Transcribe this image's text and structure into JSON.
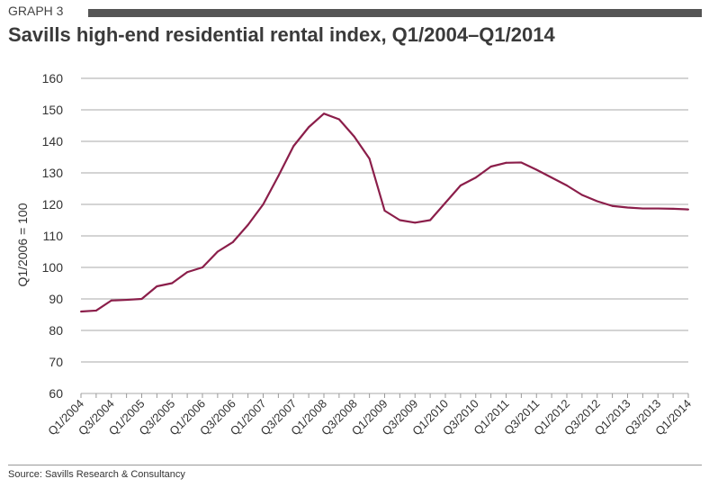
{
  "graph_label": "GRAPH 3",
  "source": "Source: Savills Research & Consultancy",
  "chart_data": {
    "type": "line",
    "title": "Savills high-end residential rental index, Q1/2004–Q1/2014",
    "xlabel": "",
    "ylabel": "Q1/2006 = 100",
    "ylim": [
      60,
      160
    ],
    "yticks": [
      60,
      70,
      80,
      90,
      100,
      110,
      120,
      130,
      140,
      150,
      160
    ],
    "xticklabels": [
      "Q1/2004",
      "Q3/2004",
      "Q1/2005",
      "Q3/2005",
      "Q1/2006",
      "Q3/2006",
      "Q1/2007",
      "Q3/2007",
      "Q1/2008",
      "Q3/2008",
      "Q1/2009",
      "Q3/2009",
      "Q1/2010",
      "Q3/2010",
      "Q1/2011",
      "Q3/2011",
      "Q1/2012",
      "Q3/2012",
      "Q1/2013",
      "Q3/2013",
      "Q1/2014"
    ],
    "grid": true,
    "color": "#8b1e4a",
    "series": [
      {
        "name": "Rental index",
        "values": [
          86,
          86.3,
          89.5,
          89.7,
          90,
          94,
          95,
          98.5,
          100,
          105,
          108,
          113.5,
          120,
          129,
          138.5,
          144.5,
          148.8,
          147,
          141.5,
          134.5,
          118,
          115,
          114.2,
          115,
          120.5,
          126,
          128.5,
          132,
          133.2,
          133.3,
          131,
          128.5,
          126,
          123,
          121,
          119.5,
          119,
          118.7,
          118.7,
          118.6,
          118.4
        ]
      }
    ]
  }
}
